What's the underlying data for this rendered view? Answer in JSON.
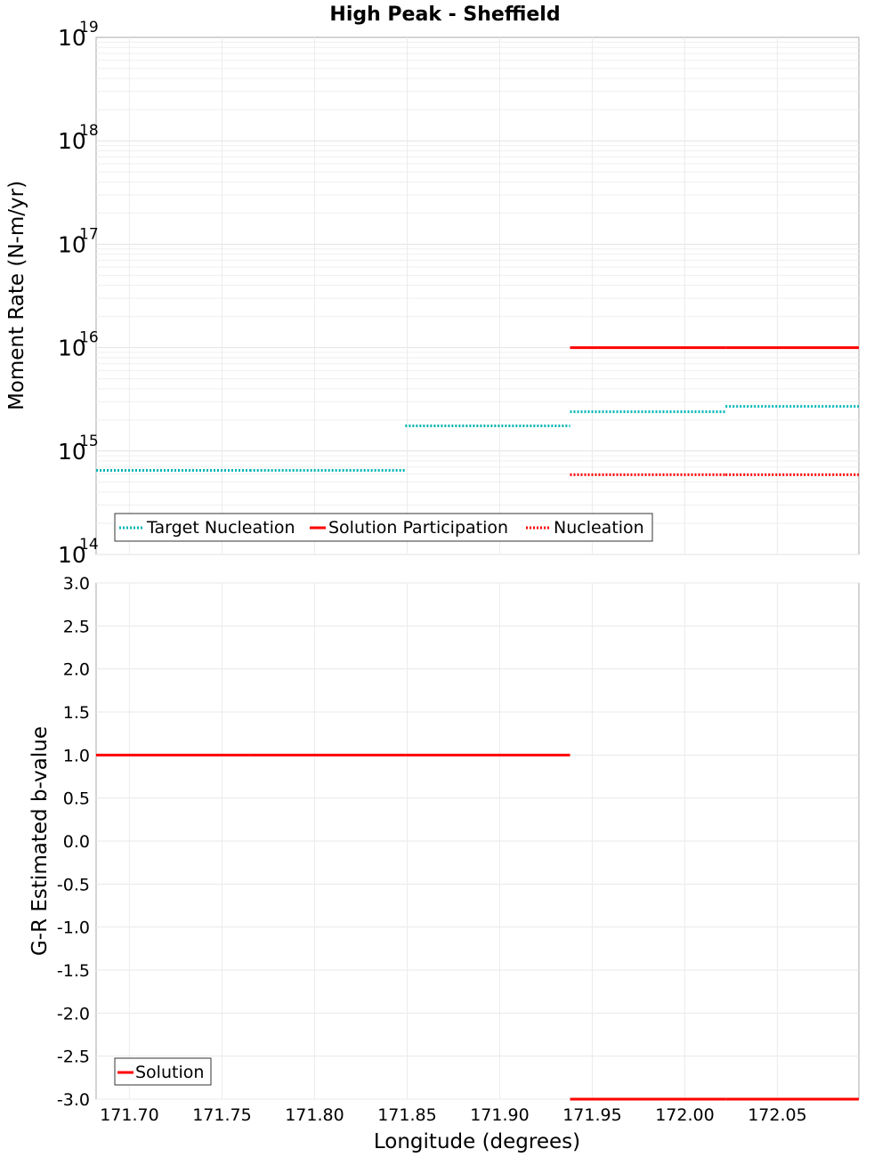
{
  "chart_data": {
    "title": "High Peak - Sheffield",
    "xlabel": "Longitude (degrees)",
    "xlim": [
      171.682,
      172.094
    ],
    "x_ticks": [
      "171.70",
      "171.75",
      "171.80",
      "171.85",
      "171.90",
      "171.95",
      "172.00",
      "172.05"
    ],
    "x_tick_values": [
      171.7,
      171.75,
      171.8,
      171.85,
      171.9,
      171.95,
      172.0,
      172.05
    ],
    "panels": [
      {
        "type": "step-line",
        "yscale": "log",
        "ylabel": "Moment Rate (N-m/yr)",
        "ylim": [
          100000000000000.0,
          1e+19
        ],
        "y_ticks": [
          {
            "value": 1e+19,
            "base": "10",
            "exp": "19"
          },
          {
            "value": 1e+18,
            "base": "10",
            "exp": "18"
          },
          {
            "value": 1e+17,
            "base": "10",
            "exp": "17"
          },
          {
            "value": 1e+16,
            "base": "10",
            "exp": "16"
          },
          {
            "value": 1000000000000000.0,
            "base": "10",
            "exp": "15"
          },
          {
            "value": 100000000000000.0,
            "base": "10",
            "exp": "14"
          }
        ],
        "legend": [
          "Target Nucleation",
          "Solution Participation",
          "Nucleation"
        ],
        "legend_position": "bottom-left",
        "series": [
          {
            "name": "Target Nucleation",
            "color": "#00b4b4",
            "style": "dotted",
            "segments": [
              {
                "x0": 171.682,
                "x1": 171.765,
                "y": 650000000000000.0
              },
              {
                "x0": 171.765,
                "x1": 171.849,
                "y": 650000000000000.0
              },
              {
                "x0": 171.849,
                "x1": 171.938,
                "y": 1750000000000000.0
              },
              {
                "x0": 171.938,
                "x1": 172.022,
                "y": 2400000000000000.0
              },
              {
                "x0": 172.022,
                "x1": 172.094,
                "y": 2700000000000000.0
              }
            ]
          },
          {
            "name": "Solution Participation",
            "color": "#ff0000",
            "style": "solid",
            "segments": [
              {
                "x0": 171.938,
                "x1": 172.022,
                "y": 1e+16
              },
              {
                "x0": 172.022,
                "x1": 172.094,
                "y": 1e+16
              }
            ]
          },
          {
            "name": "Nucleation",
            "color": "#ff0000",
            "style": "dotted",
            "segments": [
              {
                "x0": 171.938,
                "x1": 172.022,
                "y": 590000000000000.0
              },
              {
                "x0": 172.022,
                "x1": 172.094,
                "y": 590000000000000.0
              }
            ]
          }
        ]
      },
      {
        "type": "step-line",
        "yscale": "linear",
        "ylabel": "G-R Estimated b-value",
        "ylim": [
          -3.0,
          3.0
        ],
        "y_ticks": [
          "3.0",
          "2.5",
          "2.0",
          "1.5",
          "1.0",
          "0.5",
          "0.0",
          "-0.5",
          "-1.0",
          "-1.5",
          "-2.0",
          "-2.5",
          "-3.0"
        ],
        "y_tick_values": [
          3.0,
          2.5,
          2.0,
          1.5,
          1.0,
          0.5,
          0.0,
          -0.5,
          -1.0,
          -1.5,
          -2.0,
          -2.5,
          -3.0
        ],
        "legend": [
          "Solution"
        ],
        "legend_position": "bottom-left",
        "series": [
          {
            "name": "Solution",
            "color": "#ff0000",
            "style": "solid",
            "segments": [
              {
                "x0": 171.682,
                "x1": 171.765,
                "y": 1.0
              },
              {
                "x0": 171.765,
                "x1": 171.849,
                "y": 1.0
              },
              {
                "x0": 171.849,
                "x1": 171.938,
                "y": 1.0
              },
              {
                "x0": 171.938,
                "x1": 172.022,
                "y": -3.0
              },
              {
                "x0": 172.022,
                "x1": 172.094,
                "y": -3.0
              }
            ]
          }
        ]
      }
    ]
  }
}
